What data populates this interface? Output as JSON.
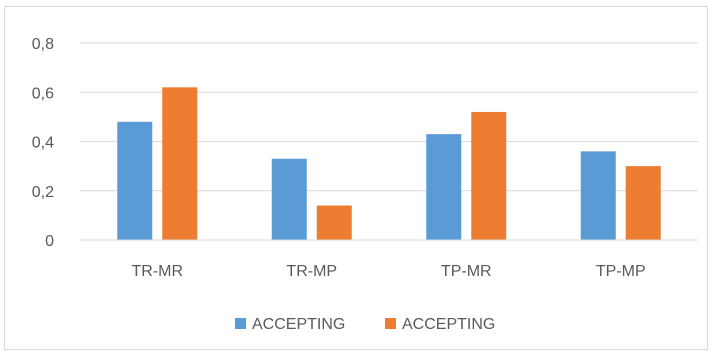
{
  "chart_data": {
    "type": "bar",
    "title": "",
    "xlabel": "",
    "ylabel": "",
    "categories": [
      "TR-MR",
      "TR-MP",
      "TP-MR",
      "TP-MP"
    ],
    "series": [
      {
        "name": "ACCEPTING",
        "color": "#5b9bd5",
        "values": [
          0.48,
          0.33,
          0.43,
          0.36
        ]
      },
      {
        "name": "ACCEPTING",
        "color": "#ed7d31",
        "values": [
          0.62,
          0.14,
          0.52,
          0.3
        ]
      }
    ],
    "ylim": [
      0,
      0.8
    ],
    "yticks": [
      "0",
      "0,2",
      "0,4",
      "0,6",
      "0,8"
    ],
    "grid": true,
    "legend_position": "bottom"
  }
}
